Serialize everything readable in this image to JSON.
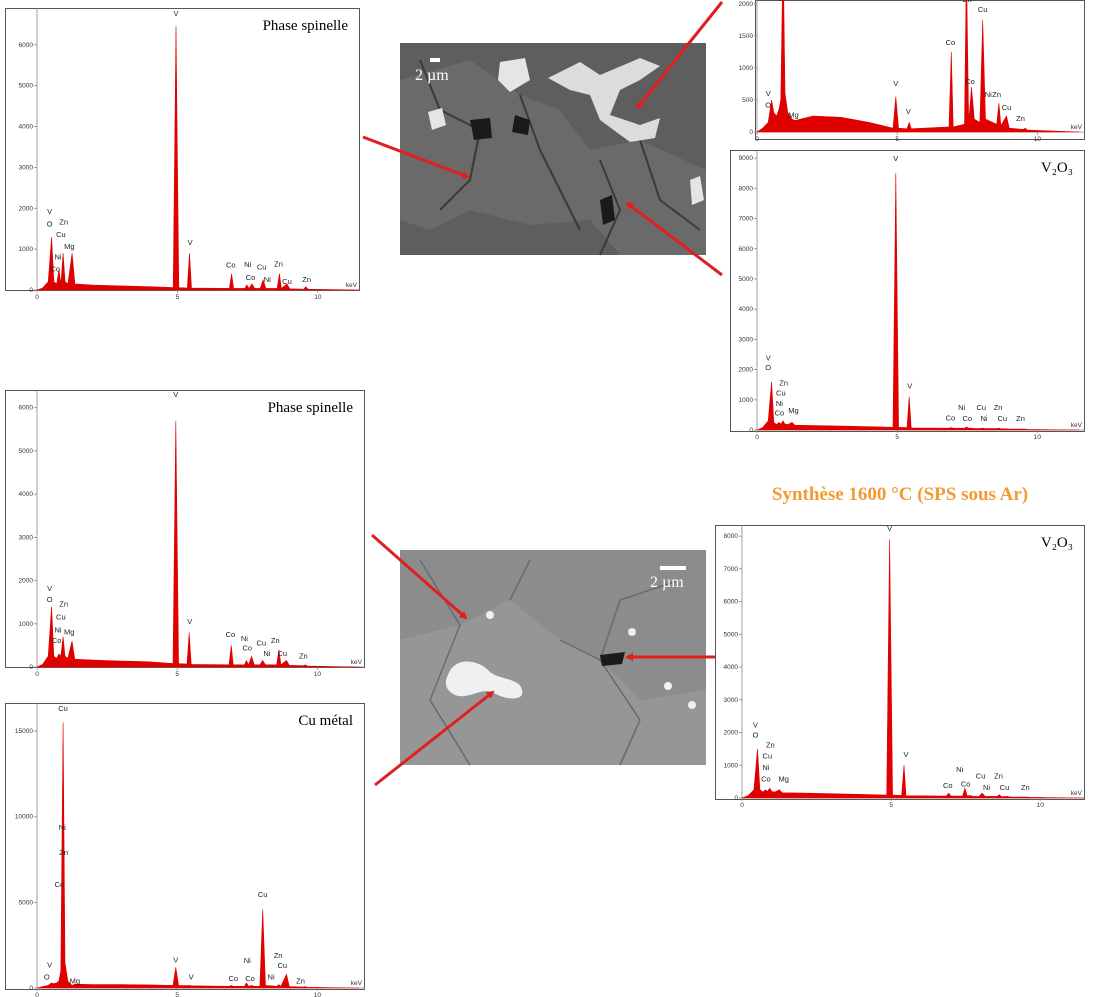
{
  "caption": "Synthèse 1600 °C (SPS sous Ar)",
  "images": [
    {
      "scale_label": "2 µm"
    },
    {
      "scale_label": "2 µm"
    }
  ],
  "chart_data": [
    {
      "type": "area",
      "title": "Phase spinelle",
      "xlabel": "keV",
      "color": "#e00000",
      "xlim": [
        0,
        11.5
      ],
      "xticks": [
        0,
        5,
        10
      ],
      "ylim": [
        0,
        6900
      ],
      "yticks": [
        0,
        1000,
        2000,
        3000,
        4000,
        5000,
        6000
      ],
      "x": [
        0,
        0.2,
        0.4,
        0.52,
        0.6,
        0.7,
        0.78,
        0.85,
        0.93,
        1.0,
        1.1,
        1.25,
        1.35,
        2,
        3,
        4,
        4.85,
        4.95,
        5.05,
        5.35,
        5.43,
        5.5,
        6.85,
        6.93,
        7.0,
        7.4,
        7.47,
        7.55,
        7.65,
        7.75,
        7.95,
        8.05,
        8.15,
        8.55,
        8.63,
        8.7,
        8.9,
        9.0,
        9.5,
        9.57,
        9.65,
        11.5
      ],
      "values": [
        0,
        50,
        200,
        1300,
        200,
        150,
        500,
        150,
        900,
        200,
        150,
        900,
        150,
        120,
        100,
        80,
        60,
        6450,
        60,
        50,
        900,
        50,
        40,
        400,
        40,
        40,
        120,
        40,
        150,
        40,
        40,
        250,
        40,
        40,
        400,
        40,
        150,
        30,
        20,
        80,
        20,
        0
      ],
      "annotations": [
        {
          "text": "V",
          "x": 0.45,
          "y": 1860
        },
        {
          "text": "O",
          "x": 0.45,
          "y": 1550
        },
        {
          "text": "Zn",
          "x": 0.95,
          "y": 1600
        },
        {
          "text": "Cu",
          "x": 0.85,
          "y": 1300
        },
        {
          "text": "Mg",
          "x": 1.15,
          "y": 1000
        },
        {
          "text": "Ni",
          "x": 0.75,
          "y": 750
        },
        {
          "text": "Co",
          "x": 0.65,
          "y": 450
        },
        {
          "text": "V",
          "x": 4.95,
          "y": 6700
        },
        {
          "text": "V",
          "x": 5.45,
          "y": 1100
        },
        {
          "text": "Co",
          "x": 6.9,
          "y": 550
        },
        {
          "text": "Ni",
          "x": 7.5,
          "y": 560
        },
        {
          "text": "Co",
          "x": 7.6,
          "y": 250
        },
        {
          "text": "Cu",
          "x": 8.0,
          "y": 500
        },
        {
          "text": "Ni",
          "x": 8.2,
          "y": 200
        },
        {
          "text": "Zn",
          "x": 8.6,
          "y": 580
        },
        {
          "text": "Cu",
          "x": 8.9,
          "y": 150
        },
        {
          "text": "Zn",
          "x": 9.6,
          "y": 200
        }
      ]
    },
    {
      "type": "area",
      "xlabel": "keV",
      "color": "#e00000",
      "xlim": [
        0,
        11.7
      ],
      "xticks": [
        0,
        5,
        10
      ],
      "ylim": [
        0,
        2060
      ],
      "yticks": [
        0,
        500,
        1000,
        1500,
        2000
      ],
      "x": [
        0,
        0.2,
        0.4,
        0.52,
        0.6,
        0.7,
        0.78,
        0.85,
        0.93,
        1.0,
        1.1,
        1.25,
        1.35,
        2,
        3,
        4,
        4.85,
        4.95,
        5.05,
        5.35,
        5.43,
        5.5,
        6.85,
        6.93,
        7.0,
        7.4,
        7.47,
        7.55,
        7.65,
        7.75,
        7.95,
        8.05,
        8.15,
        8.55,
        8.63,
        8.7,
        8.9,
        9.0,
        9.5,
        9.57,
        9.65,
        11.5
      ],
      "values": [
        0,
        60,
        150,
        500,
        300,
        250,
        350,
        500,
        2900,
        600,
        300,
        200,
        180,
        250,
        230,
        150,
        60,
        550,
        60,
        50,
        150,
        50,
        80,
        1250,
        80,
        120,
        2600,
        150,
        700,
        200,
        150,
        1750,
        200,
        120,
        450,
        100,
        250,
        60,
        40,
        60,
        30,
        0
      ],
      "annotations": [
        {
          "text": "Zn",
          "x": 0.9,
          "y": 2050
        },
        {
          "text": "V",
          "x": 0.4,
          "y": 560
        },
        {
          "text": "O",
          "x": 0.4,
          "y": 380
        },
        {
          "text": "Mg",
          "x": 1.3,
          "y": 230
        },
        {
          "text": "V",
          "x": 4.95,
          "y": 720
        },
        {
          "text": "V",
          "x": 5.4,
          "y": 280
        },
        {
          "text": "Co",
          "x": 6.9,
          "y": 1360
        },
        {
          "text": "Zn",
          "x": 7.5,
          "y": 2030
        },
        {
          "text": "Co",
          "x": 7.6,
          "y": 750
        },
        {
          "text": "Cu",
          "x": 8.05,
          "y": 1875
        },
        {
          "text": "Ni",
          "x": 8.25,
          "y": 550
        },
        {
          "text": "Zn",
          "x": 8.55,
          "y": 550
        },
        {
          "text": "Cu",
          "x": 8.9,
          "y": 340
        },
        {
          "text": "Zn",
          "x": 9.4,
          "y": 170
        }
      ]
    },
    {
      "type": "area",
      "title": "V₂O₃",
      "xlabel": "keV",
      "color": "#e00000",
      "xlim": [
        0,
        11.7
      ],
      "xticks": [
        0,
        5,
        10
      ],
      "ylim": [
        0,
        9270
      ],
      "yticks": [
        0,
        1000,
        2000,
        3000,
        4000,
        5000,
        6000,
        7000,
        8000,
        9000
      ],
      "x": [
        0,
        0.2,
        0.4,
        0.52,
        0.6,
        0.7,
        0.78,
        0.85,
        0.93,
        1.0,
        1.1,
        1.25,
        1.35,
        2,
        3,
        4,
        4.85,
        4.95,
        5.05,
        5.35,
        5.43,
        5.5,
        6.85,
        6.93,
        7.0,
        7.4,
        7.47,
        7.55,
        7.65,
        7.75,
        7.95,
        8.05,
        8.15,
        8.55,
        8.63,
        8.7,
        8.9,
        9.0,
        9.5,
        9.57,
        9.65,
        11.5
      ],
      "values": [
        0,
        80,
        300,
        1600,
        250,
        180,
        250,
        200,
        300,
        200,
        180,
        250,
        160,
        150,
        130,
        110,
        90,
        8500,
        90,
        80,
        1100,
        70,
        60,
        80,
        60,
        60,
        100,
        60,
        60,
        50,
        50,
        60,
        50,
        50,
        60,
        40,
        40,
        30,
        30,
        30,
        20,
        0
      ],
      "annotations": [
        {
          "text": "V",
          "x": 0.4,
          "y": 2300
        },
        {
          "text": "O",
          "x": 0.4,
          "y": 1990
        },
        {
          "text": "Zn",
          "x": 0.95,
          "y": 1480
        },
        {
          "text": "Cu",
          "x": 0.85,
          "y": 1150
        },
        {
          "text": "Ni",
          "x": 0.8,
          "y": 800
        },
        {
          "text": "Co",
          "x": 0.8,
          "y": 480
        },
        {
          "text": "Mg",
          "x": 1.3,
          "y": 560
        },
        {
          "text": "V",
          "x": 4.95,
          "y": 8900
        },
        {
          "text": "V",
          "x": 5.45,
          "y": 1380
        },
        {
          "text": "Co",
          "x": 6.9,
          "y": 320
        },
        {
          "text": "Ni",
          "x": 7.3,
          "y": 660
        },
        {
          "text": "Co",
          "x": 7.5,
          "y": 300
        },
        {
          "text": "Cu",
          "x": 8.0,
          "y": 660
        },
        {
          "text": "Ni",
          "x": 8.1,
          "y": 300
        },
        {
          "text": "Zn",
          "x": 8.6,
          "y": 660
        },
        {
          "text": "Cu",
          "x": 8.75,
          "y": 300
        },
        {
          "text": "Zn",
          "x": 9.4,
          "y": 300
        }
      ]
    },
    {
      "type": "area",
      "title": "Phase spinelle",
      "xlabel": "keV",
      "color": "#e00000",
      "xlim": [
        0,
        11.7
      ],
      "xticks": [
        0,
        5,
        10
      ],
      "ylim": [
        0,
        6410
      ],
      "yticks": [
        0,
        1000,
        2000,
        3000,
        4000,
        5000,
        6000
      ],
      "x": [
        0,
        0.2,
        0.4,
        0.52,
        0.6,
        0.7,
        0.78,
        0.85,
        0.93,
        1.0,
        1.1,
        1.25,
        1.35,
        2,
        3,
        4,
        4.85,
        4.95,
        5.05,
        5.35,
        5.43,
        5.5,
        6.85,
        6.93,
        7.0,
        7.4,
        7.47,
        7.55,
        7.65,
        7.75,
        7.95,
        8.05,
        8.15,
        8.55,
        8.63,
        8.7,
        8.9,
        9.0,
        9.5,
        9.57,
        9.65,
        11.5
      ],
      "values": [
        0,
        60,
        250,
        1400,
        250,
        200,
        300,
        250,
        700,
        250,
        200,
        600,
        180,
        160,
        140,
        120,
        80,
        5700,
        80,
        70,
        800,
        60,
        50,
        500,
        50,
        50,
        150,
        50,
        250,
        50,
        50,
        150,
        50,
        50,
        400,
        50,
        150,
        40,
        30,
        50,
        20,
        0
      ],
      "annotations": [
        {
          "text": "V",
          "x": 0.45,
          "y": 1760
        },
        {
          "text": "O",
          "x": 0.45,
          "y": 1500
        },
        {
          "text": "Zn",
          "x": 0.95,
          "y": 1400
        },
        {
          "text": "Cu",
          "x": 0.85,
          "y": 1100
        },
        {
          "text": "Ni",
          "x": 0.75,
          "y": 800
        },
        {
          "text": "Mg",
          "x": 1.15,
          "y": 750
        },
        {
          "text": "Co",
          "x": 0.7,
          "y": 550
        },
        {
          "text": "V",
          "x": 4.95,
          "y": 6250
        },
        {
          "text": "V",
          "x": 5.45,
          "y": 1000
        },
        {
          "text": "Co",
          "x": 6.9,
          "y": 700
        },
        {
          "text": "Ni",
          "x": 7.4,
          "y": 600
        },
        {
          "text": "Co",
          "x": 7.5,
          "y": 380
        },
        {
          "text": "Cu",
          "x": 8.0,
          "y": 500
        },
        {
          "text": "Ni",
          "x": 8.2,
          "y": 250
        },
        {
          "text": "Zn",
          "x": 8.5,
          "y": 550
        },
        {
          "text": "Cu",
          "x": 8.75,
          "y": 250
        },
        {
          "text": "Zn",
          "x": 9.5,
          "y": 200
        }
      ]
    },
    {
      "type": "area",
      "title": "Cu métal",
      "xlabel": "keV",
      "color": "#e00000",
      "xlim": [
        0,
        11.7
      ],
      "xticks": [
        0,
        5,
        10
      ],
      "ylim": [
        0,
        16640
      ],
      "yticks": [
        0,
        5000,
        10000,
        15000
      ],
      "x": [
        0,
        0.2,
        0.4,
        0.52,
        0.6,
        0.7,
        0.78,
        0.85,
        0.93,
        1.0,
        1.1,
        1.25,
        1.35,
        2,
        3,
        4,
        4.85,
        4.95,
        5.05,
        5.35,
        5.43,
        5.5,
        6.85,
        6.93,
        7.0,
        7.4,
        7.47,
        7.55,
        7.65,
        7.75,
        7.95,
        8.05,
        8.15,
        8.55,
        8.63,
        8.7,
        8.9,
        9.0,
        9.5,
        9.57,
        9.65,
        11.5
      ],
      "values": [
        0,
        80,
        150,
        300,
        250,
        300,
        400,
        1000,
        15500,
        1500,
        400,
        150,
        220,
        200,
        200,
        180,
        150,
        1200,
        150,
        140,
        150,
        130,
        100,
        150,
        100,
        100,
        300,
        100,
        150,
        100,
        100,
        4600,
        150,
        100,
        200,
        100,
        800,
        80,
        60,
        80,
        40,
        0
      ],
      "annotations": [
        {
          "text": "Cu",
          "x": 0.93,
          "y": 16170
        },
        {
          "text": "Ni",
          "x": 0.9,
          "y": 9220
        },
        {
          "text": "Zn",
          "x": 0.95,
          "y": 7760
        },
        {
          "text": "Co",
          "x": 0.8,
          "y": 5900
        },
        {
          "text": "V",
          "x": 0.45,
          "y": 1200
        },
        {
          "text": "O",
          "x": 0.35,
          "y": 500
        },
        {
          "text": "Mg",
          "x": 1.35,
          "y": 250
        },
        {
          "text": "V",
          "x": 4.95,
          "y": 1500
        },
        {
          "text": "V",
          "x": 5.5,
          "y": 500
        },
        {
          "text": "Cu",
          "x": 8.05,
          "y": 5310
        },
        {
          "text": "Co",
          "x": 7.0,
          "y": 400
        },
        {
          "text": "Ni",
          "x": 7.5,
          "y": 1460
        },
        {
          "text": "Co",
          "x": 7.6,
          "y": 400
        },
        {
          "text": "Zn",
          "x": 8.6,
          "y": 1750
        },
        {
          "text": "Cu",
          "x": 8.75,
          "y": 1170
        },
        {
          "text": "Ni",
          "x": 8.35,
          "y": 500
        },
        {
          "text": "Zn",
          "x": 9.4,
          "y": 250
        }
      ]
    },
    {
      "type": "area",
      "title": "V₂O₃",
      "xlabel": "keV",
      "color": "#e00000",
      "xlim": [
        0,
        11.5
      ],
      "xticks": [
        0,
        5,
        10
      ],
      "ylim": [
        0,
        8340
      ],
      "yticks": [
        0,
        1000,
        2000,
        3000,
        4000,
        5000,
        6000,
        7000,
        8000
      ],
      "x": [
        0,
        0.2,
        0.4,
        0.52,
        0.6,
        0.7,
        0.78,
        0.85,
        0.93,
        1.0,
        1.1,
        1.25,
        1.35,
        2,
        3,
        4,
        4.85,
        4.95,
        5.05,
        5.35,
        5.43,
        5.5,
        6.85,
        6.93,
        7.0,
        7.4,
        7.47,
        7.55,
        7.65,
        7.75,
        7.95,
        8.05,
        8.15,
        8.55,
        8.63,
        8.7,
        8.9,
        9.0,
        9.5,
        9.57,
        9.65,
        11.5
      ],
      "values": [
        0,
        70,
        250,
        1500,
        250,
        180,
        250,
        200,
        300,
        200,
        180,
        250,
        160,
        150,
        130,
        110,
        90,
        7900,
        90,
        80,
        1000,
        70,
        60,
        150,
        60,
        60,
        300,
        60,
        80,
        50,
        50,
        150,
        50,
        50,
        100,
        40,
        50,
        30,
        30,
        30,
        20,
        0
      ],
      "annotations": [
        {
          "text": "V",
          "x": 0.45,
          "y": 2150
        },
        {
          "text": "O",
          "x": 0.45,
          "y": 1850
        },
        {
          "text": "Zn",
          "x": 0.95,
          "y": 1550
        },
        {
          "text": "Cu",
          "x": 0.85,
          "y": 1200
        },
        {
          "text": "Ni",
          "x": 0.8,
          "y": 850
        },
        {
          "text": "Co",
          "x": 0.8,
          "y": 500
        },
        {
          "text": "Mg",
          "x": 1.4,
          "y": 500
        },
        {
          "text": "V",
          "x": 4.95,
          "y": 8150
        },
        {
          "text": "V",
          "x": 5.5,
          "y": 1250
        },
        {
          "text": "Co",
          "x": 6.9,
          "y": 300
        },
        {
          "text": "Ni",
          "x": 7.3,
          "y": 800
        },
        {
          "text": "Co",
          "x": 7.5,
          "y": 350
        },
        {
          "text": "Cu",
          "x": 8.0,
          "y": 600
        },
        {
          "text": "Ni",
          "x": 8.2,
          "y": 250
        },
        {
          "text": "Zn",
          "x": 8.6,
          "y": 600
        },
        {
          "text": "Cu",
          "x": 8.8,
          "y": 250
        },
        {
          "text": "Zn",
          "x": 9.5,
          "y": 250
        }
      ]
    }
  ]
}
